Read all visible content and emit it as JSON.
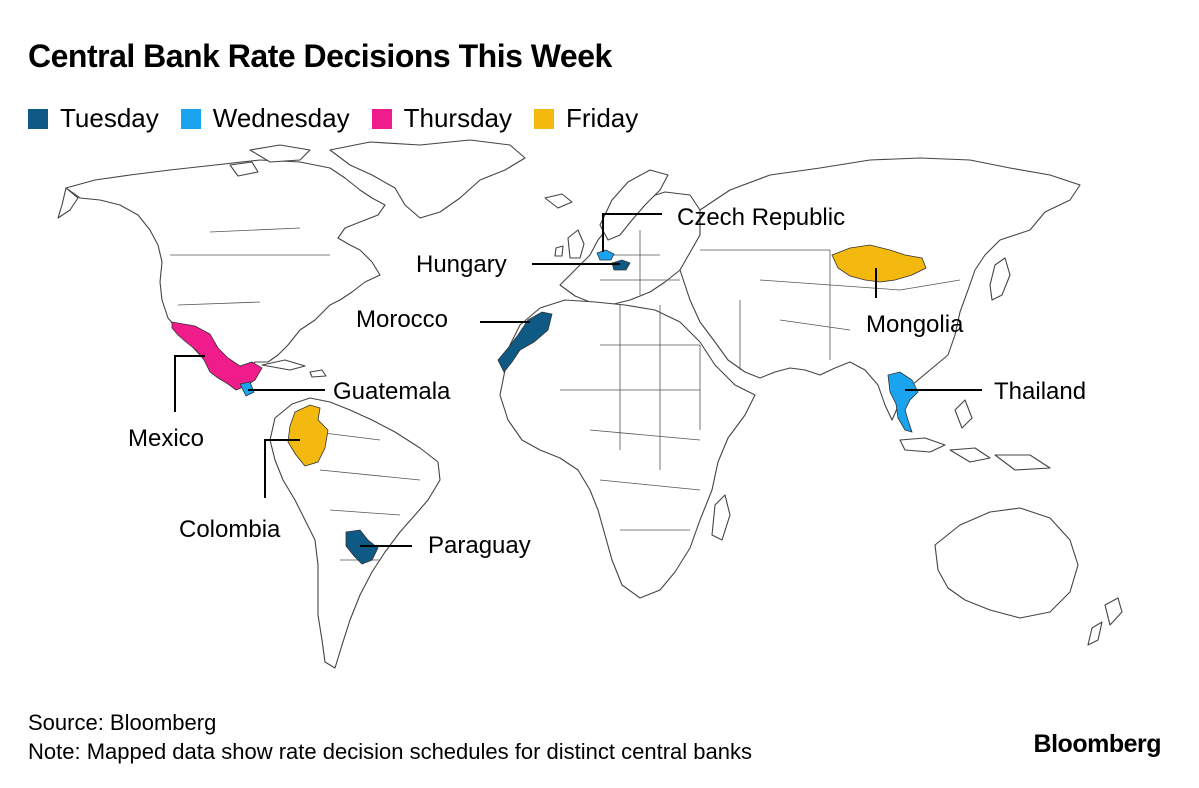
{
  "title": "Central Bank Rate Decisions This Week",
  "legend": [
    {
      "label": "Tuesday",
      "color": "#0e5a85"
    },
    {
      "label": "Wednesday",
      "color": "#1aa4ef"
    },
    {
      "label": "Thursday",
      "color": "#f01c8c"
    },
    {
      "label": "Friday",
      "color": "#f4b90e"
    }
  ],
  "countries": [
    {
      "name": "Czech Republic",
      "day": "Wednesday"
    },
    {
      "name": "Hungary",
      "day": "Tuesday"
    },
    {
      "name": "Morocco",
      "day": "Tuesday"
    },
    {
      "name": "Mongolia",
      "day": "Friday"
    },
    {
      "name": "Guatemala",
      "day": "Wednesday"
    },
    {
      "name": "Thailand",
      "day": "Wednesday"
    },
    {
      "name": "Mexico",
      "day": "Thursday"
    },
    {
      "name": "Colombia",
      "day": "Friday"
    },
    {
      "name": "Paraguay",
      "day": "Tuesday"
    }
  ],
  "footer": {
    "source": "Source: Bloomberg",
    "note": "Note: Mapped data show rate decision schedules for distinct central banks"
  },
  "brand": "Bloomberg"
}
